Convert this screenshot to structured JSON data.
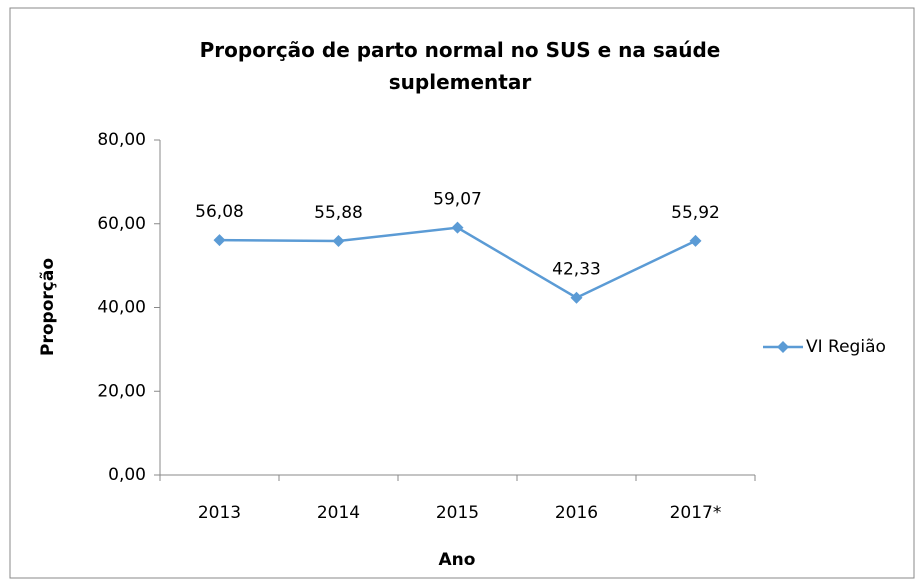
{
  "chart_data": {
    "type": "line",
    "title": "Proporção de parto normal no SUS e na saúde suplementar",
    "categories": [
      "2013",
      "2014",
      "2015",
      "2016",
      "2017*"
    ],
    "series": [
      {
        "name": "VI Região",
        "color": "#5b9bd5",
        "values": [
          56.08,
          55.88,
          59.07,
          42.33,
          55.92
        ],
        "value_labels": [
          "56,08",
          "55,88",
          "59,07",
          "42,33",
          "55,92"
        ]
      }
    ],
    "ylim": [
      0,
      80
    ],
    "yticks": [
      {
        "value": 0,
        "label": "0,00"
      },
      {
        "value": 20,
        "label": "20,00"
      },
      {
        "value": 40,
        "label": "40,00"
      },
      {
        "value": 60,
        "label": "60,00"
      },
      {
        "value": 80,
        "label": "80,00"
      }
    ],
    "xlabel": "Ano",
    "ylabel": "Proporção",
    "legend": "right",
    "grid": false
  }
}
